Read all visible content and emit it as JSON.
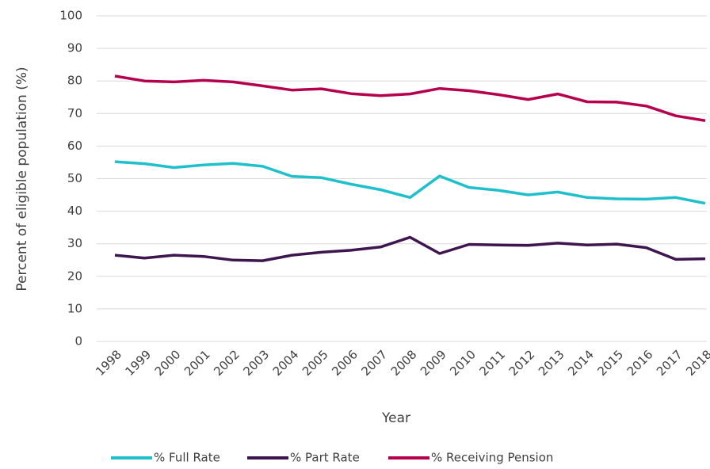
{
  "chart_data": {
    "type": "line",
    "y_label": "Percent of eligible population (%)",
    "x_label": "Year",
    "categories": [
      "1998",
      "1999",
      "2000",
      "2001",
      "2002",
      "2003",
      "2004",
      "2005",
      "2006",
      "2007",
      "2008",
      "2009",
      "2010",
      "2011",
      "2012",
      "2013",
      "2014",
      "2015",
      "2016",
      "2017",
      "2018"
    ],
    "series": [
      {
        "name": "% Full Rate",
        "color": "#1fbfcc",
        "values": [
          55.2,
          54.6,
          53.4,
          54.2,
          54.7,
          53.8,
          50.7,
          50.3,
          48.3,
          46.6,
          44.2,
          50.8,
          47.3,
          46.4,
          45,
          45.9,
          44.2,
          43.8,
          43.7,
          44.2,
          42.4
        ]
      },
      {
        "name": "% Part Rate",
        "color": "#3d1650",
        "values": [
          26.5,
          25.6,
          26.5,
          26.1,
          25,
          24.8,
          26.5,
          27.4,
          28,
          29,
          32,
          27,
          29.8,
          29.6,
          29.5,
          30.2,
          29.6,
          29.9,
          28.8,
          25.2,
          25.4
        ]
      },
      {
        "name": "% Receiving Pension",
        "color": "#b5004e",
        "values": [
          81.5,
          80,
          79.7,
          80.2,
          79.7,
          78.5,
          77.2,
          77.6,
          76.1,
          75.5,
          76,
          77.7,
          77,
          75.8,
          74.3,
          76,
          73.6,
          73.5,
          72.3,
          69.3,
          67.8
        ]
      }
    ],
    "ylim": [
      0,
      100
    ],
    "yticks": [
      0,
      10,
      20,
      30,
      40,
      50,
      60,
      70,
      80,
      90,
      100
    ],
    "grid": true
  }
}
